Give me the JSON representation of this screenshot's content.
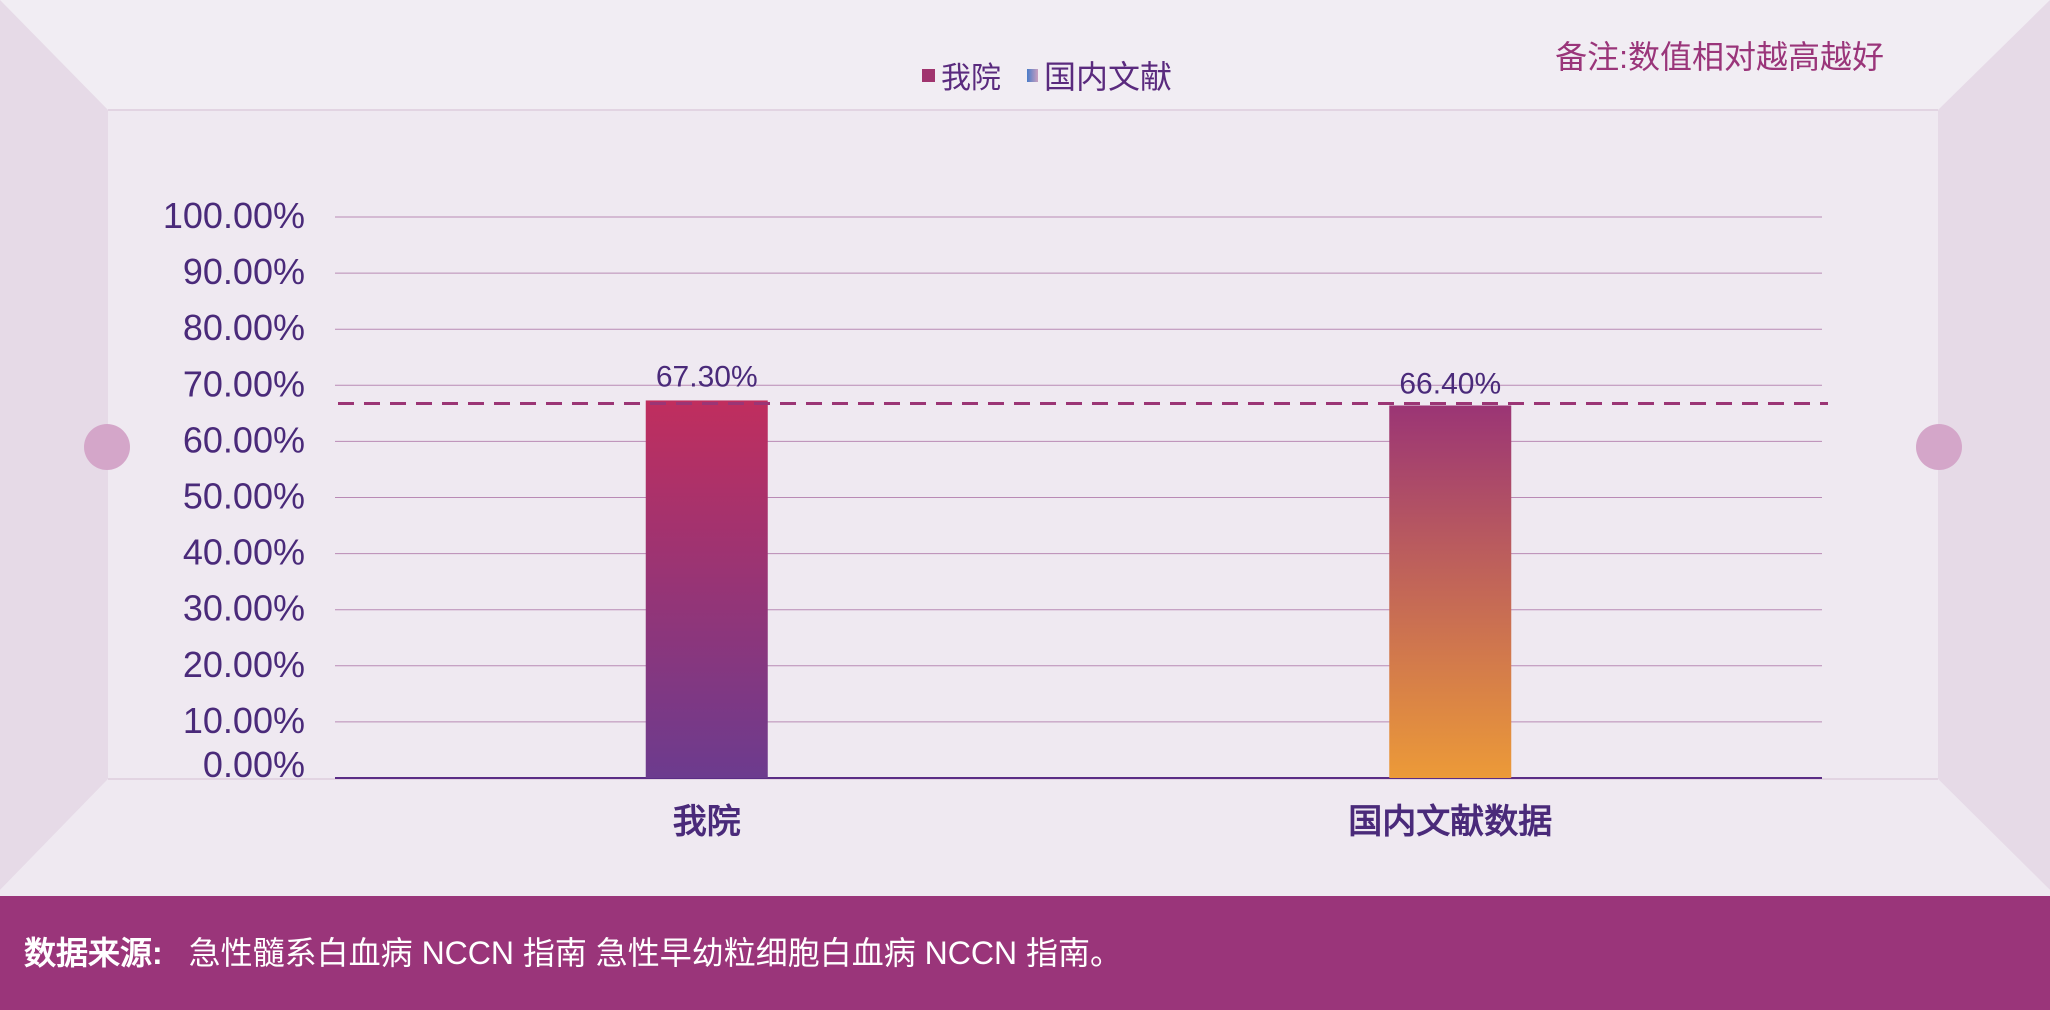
{
  "note": "备注:数值相对越高越好",
  "legend": [
    {
      "label": "我院",
      "color": "#a0346e"
    },
    {
      "label": "国内文献",
      "color": "#5a7ec8"
    }
  ],
  "footer": {
    "label": "数据来源:",
    "text": "急性髓系白血病 NCCN 指南 急性早幼粒细胞白血病 NCCN 指南。"
  },
  "colors": {
    "accent": "#9a357a",
    "axis_text": "#4a2a7a",
    "bar1_top": "#c02e5e",
    "bar1_bottom": "#6c3b8e",
    "bar2_top": "#9b3575",
    "bar2_bottom": "#ec9a38"
  },
  "chart_data": {
    "type": "bar",
    "categories": [
      "我院",
      "国内文献数据"
    ],
    "values": [
      67.3,
      66.4
    ],
    "value_labels": [
      "67.30%",
      "66.40%"
    ],
    "reference_line": 66.4,
    "ylim": [
      0,
      100
    ],
    "yticks": [
      0,
      10,
      20,
      30,
      40,
      50,
      60,
      70,
      80,
      90,
      100
    ],
    "ytick_labels": [
      "0.00%",
      "10.00%",
      "20.00%",
      "30.00%",
      "40.00%",
      "50.00%",
      "60.00%",
      "70.00%",
      "80.00%",
      "90.00%",
      "100.00%"
    ],
    "grid": true,
    "legend_position": "top"
  }
}
